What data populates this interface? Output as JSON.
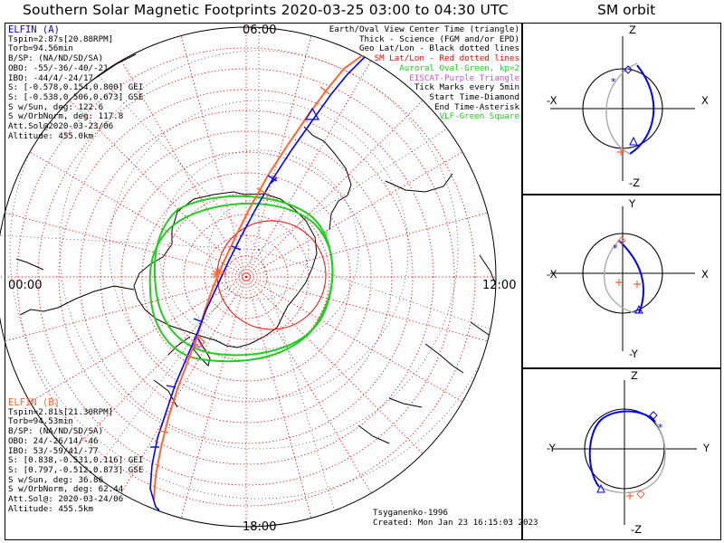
{
  "title": "Southern Solar Magnetic Footprints 2020-03-25 03:00 to 04:30 UTC",
  "orbit_title": "SM orbit",
  "ticks": {
    "top": "06:00",
    "left": "00:00",
    "right": "12:00",
    "bottom": "18:00"
  },
  "elfin_a": {
    "label": "ELFIN (A)",
    "lines": [
      "Tspin=2.87s[20.88RPM]",
      "Torb=94.56min",
      "B/SP: (NA/ND/SD/SA)",
      "OBO: -55/-36/-40/-21",
      "IBO: -44/4/-24/17",
      "S: [-0.578,0.154,0.800] GEI",
      "S: [-0.538,0.506,0.673] GSE",
      "S w/Sun, deg: 122.6",
      "S w/OrbNorm, deg: 117.8",
      "Att.Sol@2020-03-23/06",
      "Altitude: 455.0km"
    ]
  },
  "elfin_b": {
    "label": "ELFIN (B)",
    "lines": [
      "Tspin=2.81s[21.30RPM]",
      "Torb=94.53min",
      "B/SP: (NA/ND/SD/SA)",
      "OBO: 24/-26/14/-46",
      "IBO: 53/-59/41/-77",
      "S: [0.838,-0.531,0.116] GEI",
      "S: [0.797,-0.512,0.873] GSE",
      "S w/Sun, deg: 36.86",
      "S w/OrbNorm, deg: 62.44",
      "Att.Sol@: 2020-03-24/06",
      "Altitude: 455.5km"
    ]
  },
  "legend": [
    {
      "text": "Earth/Oval View Center Time (triangle)",
      "color": "#000000"
    },
    {
      "text": "Thick - Science (FGM and/or EPD)",
      "color": "#000000"
    },
    {
      "text": "Geo Lat/Lon - Black dotted lines",
      "color": "#000000"
    },
    {
      "text": "SM Lat/Lon - Red dotted lines",
      "color": "#ff0000"
    },
    {
      "text": "Auroral Oval-Green, kp=2",
      "color": "#22cc22"
    },
    {
      "text": "EISCAT-Purple Triangle",
      "color": "#cc55cc"
    },
    {
      "text": "Tick Marks every 5min",
      "color": "#000000"
    },
    {
      "text": "Start Time-Diamond",
      "color": "#000000"
    },
    {
      "text": "End Time-Asterisk",
      "color": "#000000"
    },
    {
      "text": "VLF-Green Square",
      "color": "#22cc22"
    }
  ],
  "footer": {
    "credit": "Tsyganenko-1996",
    "created": "Created: Mon Jan 23 16:15:03 2023"
  },
  "orbit_panels": [
    {
      "top": "Z",
      "bottom": "-Z",
      "left": "-X",
      "right": "X"
    },
    {
      "top": "Y",
      "bottom": "-Y",
      "left": "-X",
      "right": "X"
    },
    {
      "top": "Z",
      "bottom": "-Z",
      "left": "-Y",
      "right": "Y"
    }
  ],
  "colors": {
    "elfin_a": "#0000ff",
    "elfin_b": "#ff6633",
    "sm_grid": "#ff0000",
    "oval": "#22cc22"
  }
}
